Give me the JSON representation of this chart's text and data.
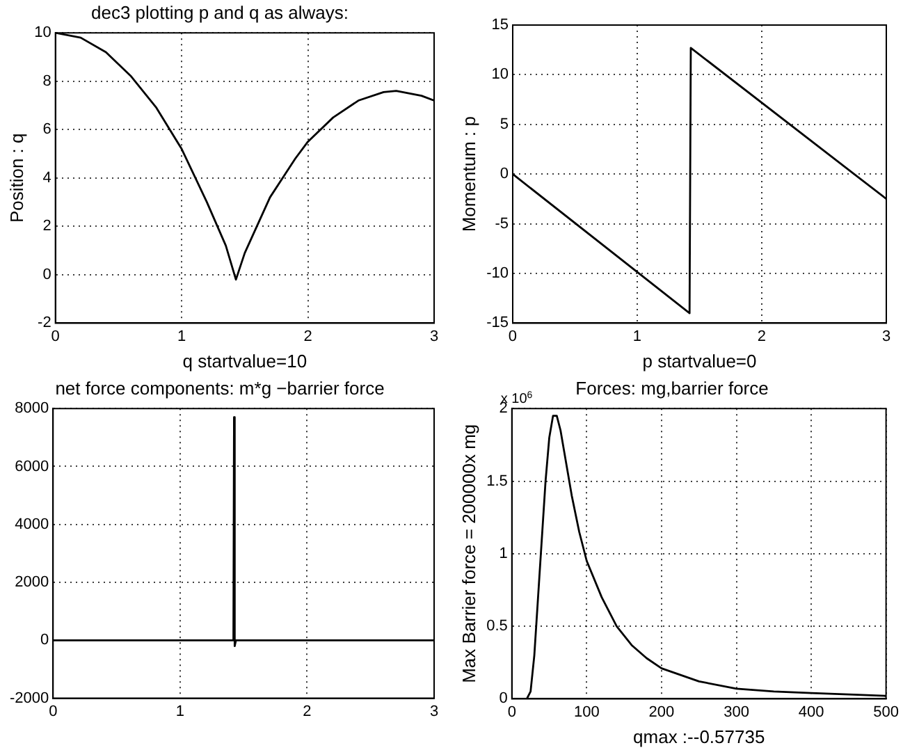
{
  "chart_data": [
    {
      "type": "line",
      "title": "dec3 plotting p and q as always:",
      "xlabel": "q startvalue=10",
      "ylabel": "Position : q",
      "xlim": [
        0,
        3
      ],
      "xticks": [
        0,
        1,
        2,
        3
      ],
      "ylim": [
        -2,
        10
      ],
      "yticks": [
        -2,
        0,
        2,
        4,
        6,
        8,
        10
      ],
      "grid": true,
      "legend": false,
      "series": [
        {
          "color": "#000000",
          "x": [
            0,
            0.2,
            0.4,
            0.6,
            0.8,
            1.0,
            1.2,
            1.35,
            1.43,
            1.5,
            1.7,
            1.9,
            2.0,
            2.2,
            2.4,
            2.6,
            2.7,
            2.8,
            2.9,
            3.0
          ],
          "values": [
            10,
            9.8,
            9.2,
            8.2,
            6.9,
            5.2,
            3.0,
            1.2,
            -0.2,
            0.9,
            3.2,
            4.8,
            5.5,
            6.5,
            7.2,
            7.55,
            7.6,
            7.5,
            7.4,
            7.2
          ]
        }
      ]
    },
    {
      "type": "line",
      "xlabel": "p startvalue=0",
      "ylabel": "Momentum : p",
      "xlim": [
        0,
        3
      ],
      "xticks": [
        0,
        1,
        2,
        3
      ],
      "ylim": [
        -15,
        15
      ],
      "yticks": [
        -15,
        -10,
        -5,
        0,
        5,
        10,
        15
      ],
      "grid": true,
      "legend": false,
      "series": [
        {
          "color": "#000000",
          "x": [
            0,
            1.42,
            1.43,
            3
          ],
          "values": [
            0,
            -14,
            12.7,
            -2.5
          ]
        }
      ]
    },
    {
      "type": "line",
      "title": "net force components: m*g −barrier force",
      "xlim": [
        0,
        3
      ],
      "xticks": [
        0,
        1,
        2,
        3
      ],
      "ylim": [
        -2000,
        8000
      ],
      "yticks": [
        -2000,
        0,
        2000,
        4000,
        6000,
        8000
      ],
      "grid": true,
      "legend": false,
      "series": [
        {
          "color": "#000000",
          "x": [
            0,
            1.42,
            1.425,
            1.43,
            1.44,
            3
          ],
          "values": [
            0,
            0,
            7700,
            -200,
            0,
            0
          ]
        }
      ]
    },
    {
      "type": "line",
      "title": "Forces: mg,barrier force",
      "xlabel": "qmax :--0.57735",
      "ylabel": "Max Barrier force = 200000x mg",
      "annotations": [
        "x 10$^{6}$"
      ],
      "xlim": [
        0,
        500
      ],
      "xticks": [
        0,
        100,
        200,
        300,
        400,
        500
      ],
      "ylim": [
        0,
        2
      ],
      "yticks": [
        0,
        0.5,
        1,
        1.5,
        2
      ],
      "grid": true,
      "legend": false,
      "series": [
        {
          "color": "#000000",
          "x": [
            0,
            20,
            25,
            30,
            35,
            40,
            45,
            50,
            55,
            60,
            65,
            70,
            80,
            90,
            100,
            120,
            140,
            160,
            180,
            200,
            250,
            300,
            350,
            400,
            450,
            500
          ],
          "values": [
            0,
            0,
            0.05,
            0.3,
            0.7,
            1.1,
            1.5,
            1.8,
            1.95,
            1.95,
            1.85,
            1.7,
            1.4,
            1.15,
            0.95,
            0.7,
            0.5,
            0.37,
            0.28,
            0.21,
            0.12,
            0.07,
            0.05,
            0.04,
            0.03,
            0.02
          ]
        }
      ]
    }
  ]
}
